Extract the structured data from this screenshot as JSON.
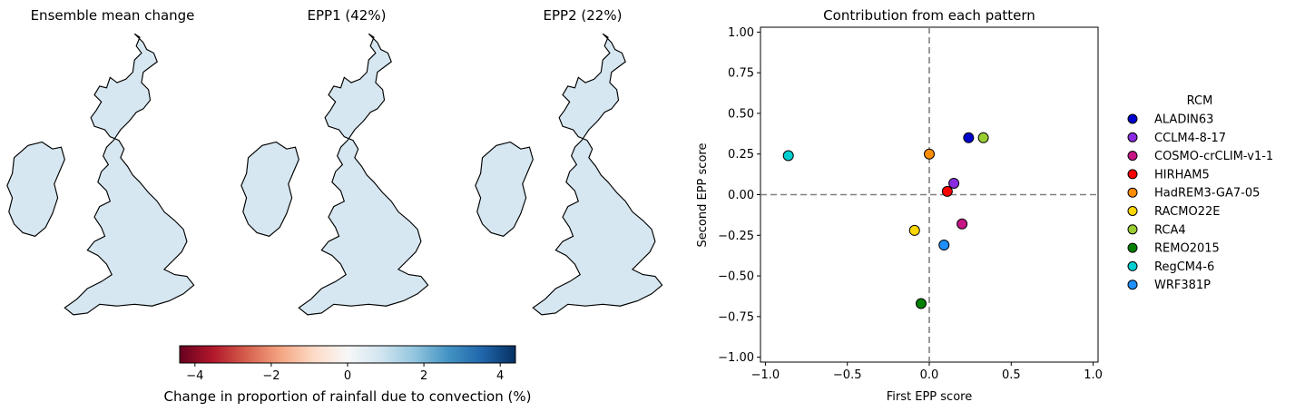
{
  "maps": {
    "panels": [
      {
        "title": "Ensemble mean change"
      },
      {
        "title": "EPP1 (42%)"
      },
      {
        "title": "EPP2 (22%)"
      }
    ],
    "colorbar": {
      "label": "Change in proportion of rainfall due to convection (%)",
      "range": [
        -4.4,
        4.4
      ],
      "ticks": [
        -4,
        -2,
        0,
        2,
        4
      ],
      "tick_labels": [
        "−4",
        "−2",
        "0",
        "2",
        "4"
      ],
      "colormap": "RdBu"
    }
  },
  "chart_data": {
    "type": "scatter",
    "title": "Contribution from each pattern",
    "xlabel": "First EPP score",
    "ylabel": "Second EPP score",
    "xlim": [
      -1.03,
      1.03
    ],
    "ylim": [
      -1.03,
      1.03
    ],
    "xticks": [
      -1.0,
      -0.5,
      0.0,
      0.5,
      1.0
    ],
    "xtick_labels": [
      "−1.0",
      "−0.5",
      "0.0",
      "0.5",
      "1.0"
    ],
    "yticks": [
      1.0,
      0.75,
      0.5,
      0.25,
      0.0,
      -0.25,
      -0.5,
      -0.75,
      -1.0
    ],
    "ytick_labels": [
      "1.00",
      "0.75",
      "0.50",
      "0.25",
      "0.00",
      "−0.25",
      "−0.50",
      "−0.75",
      "−1.00"
    ],
    "reference_lines": {
      "x": 0,
      "y": 0,
      "style": "dashed",
      "color": "#808080"
    },
    "legend": {
      "title": "RCM",
      "placement": "outside-right"
    },
    "series": [
      {
        "name": "ALADIN63",
        "color": "#0000cd",
        "x": 0.24,
        "y": 0.35
      },
      {
        "name": "CCLM4-8-17",
        "color": "#8a2be2",
        "x": 0.15,
        "y": 0.07
      },
      {
        "name": "COSMO-crCLIM-v1-1",
        "color": "#c71585",
        "x": 0.2,
        "y": -0.18
      },
      {
        "name": "HIRHAM5",
        "color": "#ff0000",
        "x": 0.11,
        "y": 0.02
      },
      {
        "name": "HadREM3-GA7-05",
        "color": "#ff8c00",
        "x": 0.0,
        "y": 0.25
      },
      {
        "name": "RACMO22E",
        "color": "#ffd700",
        "x": -0.09,
        "y": -0.22
      },
      {
        "name": "RCA4",
        "color": "#9acd32",
        "x": 0.33,
        "y": 0.35
      },
      {
        "name": "REMO2015",
        "color": "#008000",
        "x": -0.05,
        "y": -0.67
      },
      {
        "name": "RegCM4-6",
        "color": "#00ced1",
        "x": -0.86,
        "y": 0.24
      },
      {
        "name": "WRF381P",
        "color": "#1e90ff",
        "x": 0.09,
        "y": -0.31
      }
    ]
  }
}
